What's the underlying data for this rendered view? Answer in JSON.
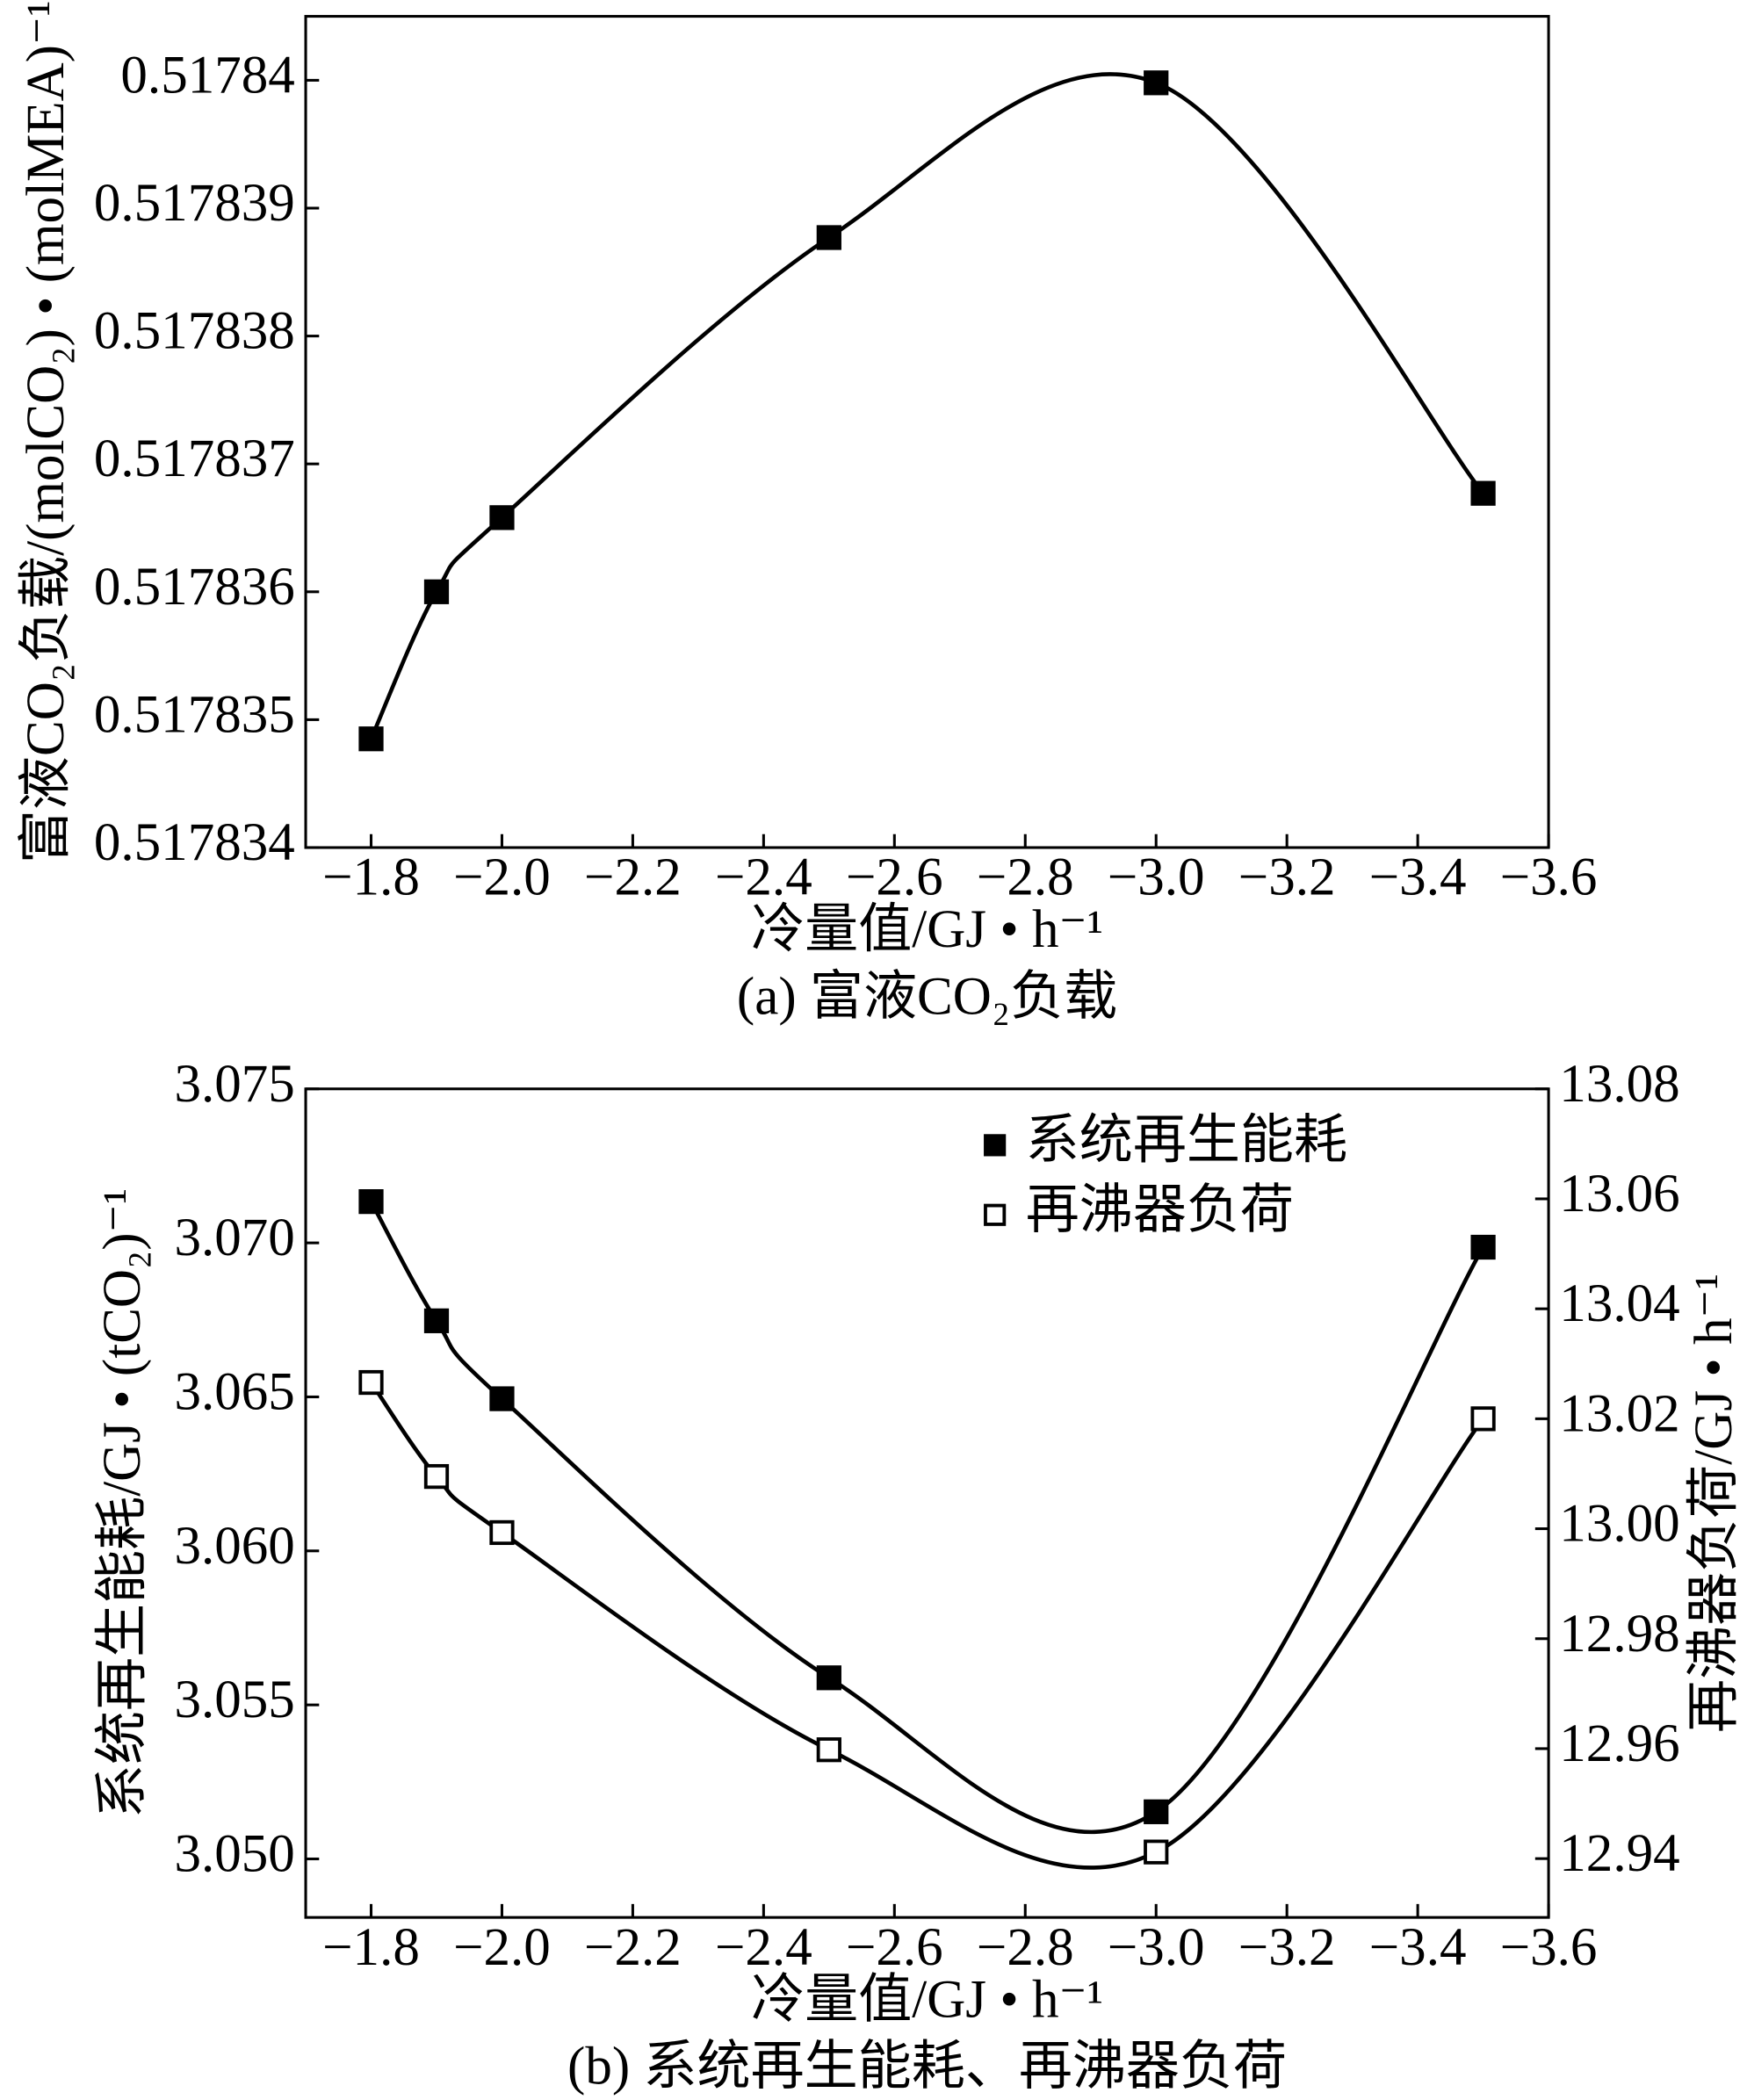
{
  "chart_data": [
    {
      "type": "line",
      "caption": "(a) 富液CO₂负载",
      "x_label": "冷量值/GJ • h⁻¹",
      "y_label": "富液CO₂负载/(molCO₂) • (molMEA)⁻¹",
      "x": [
        -1.8,
        -1.9,
        -2.0,
        -2.5,
        -3.0,
        -3.5
      ],
      "series": [
        {
          "name": "富液CO₂负载",
          "color": "#000000",
          "marker_filled": true,
          "values": [
            0.51783485,
            0.517836,
            0.51783658,
            0.51783877,
            0.51783998,
            0.51783677
          ]
        }
      ],
      "xlim": [
        -1.7,
        -3.6
      ],
      "xticks": [
        {
          "value": -1.8,
          "label": "−1.8"
        },
        {
          "value": -2.0,
          "label": "−2.0"
        },
        {
          "value": -2.2,
          "label": "−2.2"
        },
        {
          "value": -2.4,
          "label": "−2.4"
        },
        {
          "value": -2.6,
          "label": "−2.6"
        },
        {
          "value": -2.8,
          "label": "−2.8"
        },
        {
          "value": -3.0,
          "label": "−3.0"
        },
        {
          "value": -3.2,
          "label": "−3.2"
        },
        {
          "value": -3.4,
          "label": "−3.4"
        },
        {
          "value": -3.6,
          "label": "−3.6"
        }
      ],
      "ylim": [
        0.517834,
        0.5178405
      ],
      "yticks": [
        0.517834,
        0.517835,
        0.517836,
        0.517837,
        0.517838,
        0.517839,
        0.51784
      ],
      "legend": "none"
    },
    {
      "type": "line",
      "caption": "(b) 系统再生能耗、再沸器负荷",
      "x_label": "冷量值/GJ • h⁻¹",
      "y_label": "系统再生能耗/GJ • (tCO₂)⁻¹",
      "y2_label": "再沸器负荷/GJ • h⁻¹",
      "x": [
        -1.8,
        -1.9,
        -2.0,
        -2.5,
        -3.0,
        -3.5
      ],
      "series": [
        {
          "name": "系统再生能耗",
          "color": "#000000",
          "marker_filled": true,
          "values": [
            3.07134,
            3.06747,
            3.06494,
            3.05588,
            3.05153,
            3.06986
          ]
        },
        {
          "name": "再沸器负荷",
          "color": "#000000",
          "marker_filled": false,
          "axis": "y2",
          "values": [
            13.0266,
            13.0095,
            12.9993,
            12.9598,
            12.9412,
            13.02
          ]
        }
      ],
      "xlim": [
        -1.7,
        -3.6
      ],
      "xticks": [
        {
          "value": -1.8,
          "label": "−1.8"
        },
        {
          "value": -2.0,
          "label": "−2.0"
        },
        {
          "value": -2.2,
          "label": "−2.2"
        },
        {
          "value": -2.4,
          "label": "−2.4"
        },
        {
          "value": -2.6,
          "label": "−2.6"
        },
        {
          "value": -2.8,
          "label": "−2.8"
        },
        {
          "value": -3.0,
          "label": "−3.0"
        },
        {
          "value": -3.2,
          "label": "−3.2"
        },
        {
          "value": -3.4,
          "label": "−3.4"
        },
        {
          "value": -3.6,
          "label": "−3.6"
        }
      ],
      "ylim": [
        3.0481,
        3.075
      ],
      "yticks": [
        {
          "value": 3.05,
          "label": "3.050"
        },
        3.055,
        {
          "value": 3.06,
          "label": "3.060"
        },
        3.065,
        {
          "value": 3.07,
          "label": "3.070"
        },
        3.075
      ],
      "y2lim": [
        12.9293,
        13.08
      ],
      "y2ticks": [
        12.94,
        12.96,
        12.98,
        {
          "value": 13.0,
          "label": "13.00"
        },
        13.02,
        13.04,
        13.06,
        13.08
      ],
      "legend": "upper right"
    }
  ]
}
